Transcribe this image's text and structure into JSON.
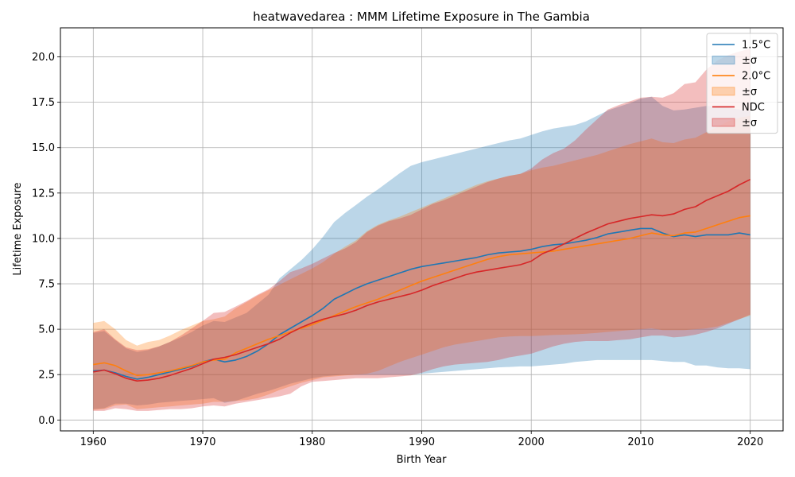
{
  "chart_data": {
    "type": "area",
    "title": "heatwavedarea : MMM Lifetime Exposure in The Gambia",
    "xlabel": "Birth Year",
    "ylabel": "Lifetime Exposure",
    "xlim": [
      1957,
      2023
    ],
    "ylim": [
      -0.6,
      21.6
    ],
    "xticks": [
      1960,
      1970,
      1980,
      1990,
      2000,
      2010,
      2020
    ],
    "yticks": [
      0.0,
      2.5,
      5.0,
      7.5,
      10.0,
      12.5,
      15.0,
      17.5,
      20.0
    ],
    "ytick_labels": [
      "0.0",
      "2.5",
      "5.0",
      "7.5",
      "10.0",
      "12.5",
      "15.0",
      "17.5",
      "20.0"
    ],
    "grid": true,
    "legend_position": "top-right",
    "x": [
      1960,
      1961,
      1962,
      1963,
      1964,
      1965,
      1966,
      1967,
      1968,
      1969,
      1970,
      1971,
      1972,
      1973,
      1974,
      1975,
      1976,
      1977,
      1978,
      1979,
      1980,
      1981,
      1982,
      1983,
      1984,
      1985,
      1986,
      1987,
      1988,
      1989,
      1990,
      1991,
      1992,
      1993,
      1994,
      1995,
      1996,
      1997,
      1998,
      1999,
      2000,
      2001,
      2002,
      2003,
      2004,
      2005,
      2006,
      2007,
      2008,
      2009,
      2010,
      2011,
      2012,
      2013,
      2014,
      2015,
      2016,
      2017,
      2018,
      2019,
      2020
    ],
    "series": [
      {
        "name": "1.5°C",
        "band_label": "±σ",
        "color": "#1f77b4",
        "band_color": "#1f77b4",
        "band_opacity": 0.3,
        "values": [
          2.7,
          2.75,
          2.6,
          2.4,
          2.25,
          2.35,
          2.5,
          2.65,
          2.8,
          2.95,
          3.2,
          3.35,
          3.2,
          3.3,
          3.5,
          3.8,
          4.2,
          4.7,
          5.05,
          5.4,
          5.75,
          6.15,
          6.65,
          6.95,
          7.25,
          7.5,
          7.7,
          7.9,
          8.1,
          8.3,
          8.45,
          8.55,
          8.65,
          8.75,
          8.85,
          8.95,
          9.1,
          9.2,
          9.25,
          9.3,
          9.4,
          9.55,
          9.65,
          9.7,
          9.8,
          9.9,
          10.05,
          10.25,
          10.35,
          10.45,
          10.55,
          10.55,
          10.3,
          10.1,
          10.2,
          10.1,
          10.2,
          10.2,
          10.2,
          10.3,
          10.2
        ],
        "lower": [
          0.6,
          0.65,
          0.9,
          0.9,
          0.8,
          0.85,
          0.95,
          1.0,
          1.05,
          1.1,
          1.15,
          1.2,
          0.95,
          1.05,
          1.25,
          1.45,
          1.6,
          1.8,
          2.0,
          2.15,
          2.3,
          2.4,
          2.45,
          2.5,
          2.5,
          2.5,
          2.5,
          2.5,
          2.5,
          2.5,
          2.55,
          2.6,
          2.65,
          2.7,
          2.75,
          2.8,
          2.85,
          2.9,
          2.92,
          2.95,
          2.95,
          3.0,
          3.05,
          3.1,
          3.2,
          3.25,
          3.3,
          3.3,
          3.3,
          3.3,
          3.3,
          3.3,
          3.25,
          3.2,
          3.2,
          3.0,
          3.0,
          2.9,
          2.85,
          2.85,
          2.8
        ],
        "upper": [
          4.8,
          4.9,
          4.4,
          3.95,
          3.75,
          3.85,
          4.05,
          4.3,
          4.55,
          4.85,
          5.2,
          5.45,
          5.4,
          5.65,
          5.9,
          6.4,
          6.9,
          7.8,
          8.3,
          8.8,
          9.4,
          10.1,
          10.9,
          11.4,
          11.85,
          12.3,
          12.7,
          13.15,
          13.6,
          14.0,
          14.2,
          14.35,
          14.5,
          14.65,
          14.8,
          14.95,
          15.1,
          15.25,
          15.4,
          15.5,
          15.7,
          15.9,
          16.05,
          16.15,
          16.25,
          16.45,
          16.75,
          17.05,
          17.25,
          17.45,
          17.7,
          17.8,
          17.3,
          17.05,
          17.1,
          17.2,
          17.3,
          17.25,
          17.2,
          17.1,
          17.0
        ]
      },
      {
        "name": "2.0°C",
        "band_label": "±σ",
        "color": "#ff7f0e",
        "band_color": "#ff7f0e",
        "band_opacity": 0.3,
        "values": [
          3.05,
          3.15,
          3.0,
          2.7,
          2.45,
          2.5,
          2.6,
          2.7,
          2.85,
          3.0,
          3.2,
          3.3,
          3.35,
          3.7,
          3.95,
          4.2,
          4.45,
          4.65,
          4.85,
          5.05,
          5.25,
          5.5,
          5.75,
          6.0,
          6.25,
          6.45,
          6.65,
          6.9,
          7.15,
          7.4,
          7.65,
          7.85,
          8.05,
          8.25,
          8.45,
          8.65,
          8.85,
          9.0,
          9.1,
          9.15,
          9.2,
          9.25,
          9.3,
          9.4,
          9.5,
          9.6,
          9.7,
          9.8,
          9.9,
          10.0,
          10.15,
          10.3,
          10.2,
          10.15,
          10.3,
          10.35,
          10.55,
          10.75,
          10.95,
          11.15,
          11.25
        ],
        "lower": [
          0.55,
          0.6,
          0.8,
          0.85,
          0.6,
          0.65,
          0.7,
          0.75,
          0.8,
          0.85,
          0.9,
          1.0,
          1.0,
          1.05,
          1.1,
          1.2,
          1.4,
          1.65,
          1.85,
          2.05,
          2.2,
          2.35,
          2.4,
          2.45,
          2.5,
          2.55,
          2.7,
          2.95,
          3.2,
          3.4,
          3.6,
          3.8,
          4.0,
          4.15,
          4.25,
          4.35,
          4.45,
          4.55,
          4.6,
          4.62,
          4.62,
          4.65,
          4.68,
          4.7,
          4.72,
          4.75,
          4.8,
          4.85,
          4.9,
          4.95,
          5.0,
          5.05,
          4.95,
          4.95,
          4.95,
          5.0,
          5.05,
          5.15,
          5.35,
          5.55,
          5.75
        ],
        "upper": [
          5.35,
          5.45,
          5.0,
          4.4,
          4.1,
          4.3,
          4.4,
          4.65,
          4.95,
          5.2,
          5.45,
          5.55,
          5.7,
          6.15,
          6.5,
          6.85,
          7.15,
          7.45,
          7.75,
          8.05,
          8.35,
          8.7,
          9.15,
          9.55,
          9.9,
          10.4,
          10.75,
          11.0,
          11.2,
          11.45,
          11.7,
          11.95,
          12.2,
          12.45,
          12.7,
          12.95,
          13.15,
          13.3,
          13.45,
          13.55,
          13.75,
          13.9,
          14.0,
          14.15,
          14.3,
          14.45,
          14.6,
          14.8,
          15.0,
          15.2,
          15.35,
          15.5,
          15.3,
          15.25,
          15.45,
          15.55,
          15.85,
          16.15,
          16.45,
          16.65,
          16.75
        ]
      },
      {
        "name": "NDC",
        "band_label": "±σ",
        "color": "#d62728",
        "band_color": "#d62728",
        "band_opacity": 0.3,
        "values": [
          2.65,
          2.75,
          2.55,
          2.3,
          2.15,
          2.2,
          2.3,
          2.45,
          2.65,
          2.85,
          3.1,
          3.35,
          3.45,
          3.6,
          3.8,
          4.0,
          4.2,
          4.45,
          4.8,
          5.1,
          5.35,
          5.55,
          5.7,
          5.85,
          6.05,
          6.3,
          6.5,
          6.65,
          6.8,
          6.95,
          7.15,
          7.4,
          7.6,
          7.8,
          8.0,
          8.15,
          8.25,
          8.35,
          8.45,
          8.55,
          8.75,
          9.15,
          9.4,
          9.7,
          10.0,
          10.3,
          10.55,
          10.8,
          10.95,
          11.1,
          11.2,
          11.3,
          11.25,
          11.35,
          11.6,
          11.75,
          12.1,
          12.35,
          12.6,
          12.95,
          13.25
        ],
        "lower": [
          0.5,
          0.5,
          0.65,
          0.6,
          0.5,
          0.5,
          0.55,
          0.6,
          0.6,
          0.65,
          0.75,
          0.8,
          0.75,
          0.9,
          1.0,
          1.1,
          1.2,
          1.3,
          1.45,
          1.85,
          2.1,
          2.15,
          2.2,
          2.25,
          2.3,
          2.3,
          2.3,
          2.35,
          2.4,
          2.45,
          2.6,
          2.8,
          2.95,
          3.05,
          3.1,
          3.15,
          3.2,
          3.3,
          3.45,
          3.55,
          3.65,
          3.85,
          4.05,
          4.2,
          4.3,
          4.35,
          4.35,
          4.35,
          4.4,
          4.45,
          4.55,
          4.65,
          4.65,
          4.55,
          4.6,
          4.7,
          4.85,
          5.05,
          5.3,
          5.55,
          5.8
        ],
        "upper": [
          4.85,
          5.0,
          4.45,
          4.0,
          3.85,
          3.9,
          4.05,
          4.3,
          4.65,
          5.05,
          5.45,
          5.9,
          5.95,
          6.25,
          6.55,
          6.9,
          7.2,
          7.65,
          8.15,
          8.35,
          8.6,
          8.9,
          9.2,
          9.45,
          9.8,
          10.35,
          10.7,
          10.95,
          11.1,
          11.3,
          11.6,
          11.9,
          12.1,
          12.35,
          12.6,
          12.85,
          13.1,
          13.3,
          13.45,
          13.55,
          13.85,
          14.35,
          14.7,
          14.95,
          15.4,
          16.0,
          16.55,
          17.1,
          17.35,
          17.55,
          17.75,
          17.8,
          17.75,
          18.0,
          18.5,
          18.6,
          19.3,
          19.8,
          20.1,
          20.3,
          20.45
        ]
      }
    ]
  }
}
